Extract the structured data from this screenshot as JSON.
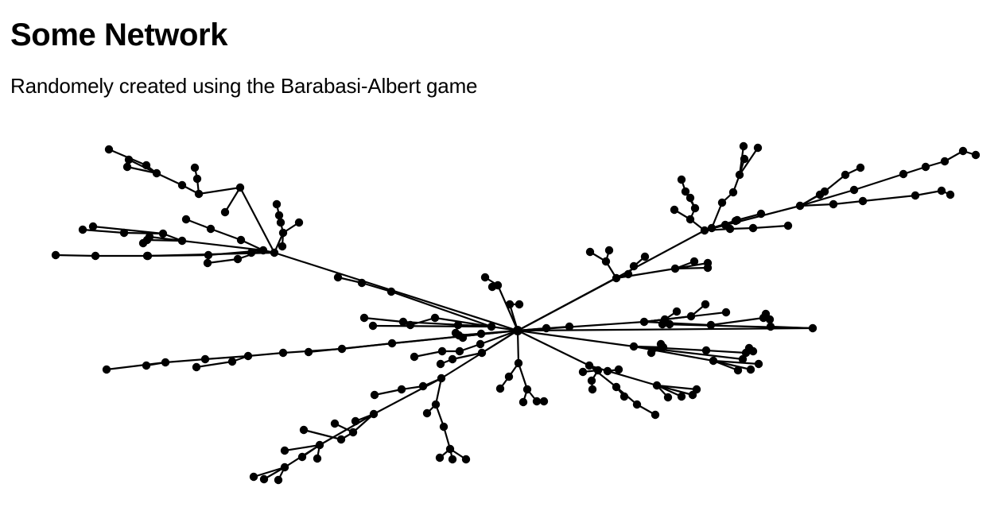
{
  "title": "Some Network",
  "subtitle": "Randomely created using the Barabasi-Albert game",
  "colors": {
    "background": "#ffffff",
    "node": "#000000",
    "edge": "#000000"
  }
}
